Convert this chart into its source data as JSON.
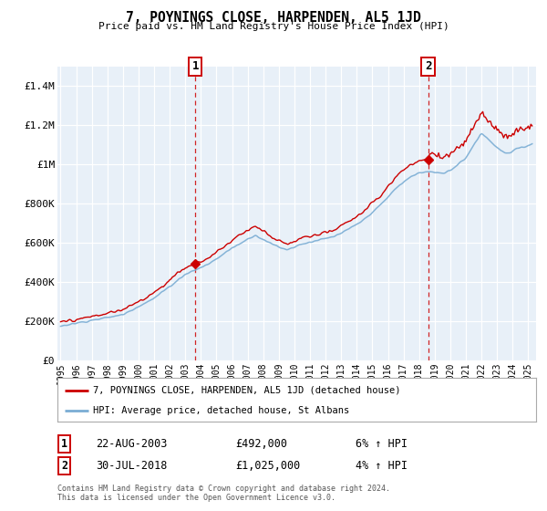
{
  "title": "7, POYNINGS CLOSE, HARPENDEN, AL5 1JD",
  "subtitle": "Price paid vs. HM Land Registry's House Price Index (HPI)",
  "ylabel_ticks": [
    "£0",
    "£200K",
    "£400K",
    "£600K",
    "£800K",
    "£1M",
    "£1.2M",
    "£1.4M"
  ],
  "ytick_values": [
    0,
    200000,
    400000,
    600000,
    800000,
    1000000,
    1200000,
    1400000
  ],
  "ylim": [
    0,
    1500000
  ],
  "xlim_start": 1994.8,
  "xlim_end": 2025.5,
  "xticks": [
    1995,
    1996,
    1997,
    1998,
    1999,
    2000,
    2001,
    2002,
    2003,
    2004,
    2005,
    2006,
    2007,
    2008,
    2009,
    2010,
    2011,
    2012,
    2013,
    2014,
    2015,
    2016,
    2017,
    2018,
    2019,
    2020,
    2021,
    2022,
    2023,
    2024,
    2025
  ],
  "sale1_x": 2003.64,
  "sale1_y": 492000,
  "sale1_label": "1",
  "sale1_date": "22-AUG-2003",
  "sale1_price": "£492,000",
  "sale1_hpi": "6% ↑ HPI",
  "sale2_x": 2018.58,
  "sale2_y": 1025000,
  "sale2_label": "2",
  "sale2_date": "30-JUL-2018",
  "sale2_price": "£1,025,000",
  "sale2_hpi": "4% ↑ HPI",
  "property_color": "#cc0000",
  "hpi_color": "#7aadd4",
  "background_color": "#e8f0f8",
  "grid_color": "#ffffff",
  "legend_property": "7, POYNINGS CLOSE, HARPENDEN, AL5 1JD (detached house)",
  "legend_hpi": "HPI: Average price, detached house, St Albans",
  "footnote1": "Contains HM Land Registry data © Crown copyright and database right 2024.",
  "footnote2": "This data is licensed under the Open Government Licence v3.0."
}
